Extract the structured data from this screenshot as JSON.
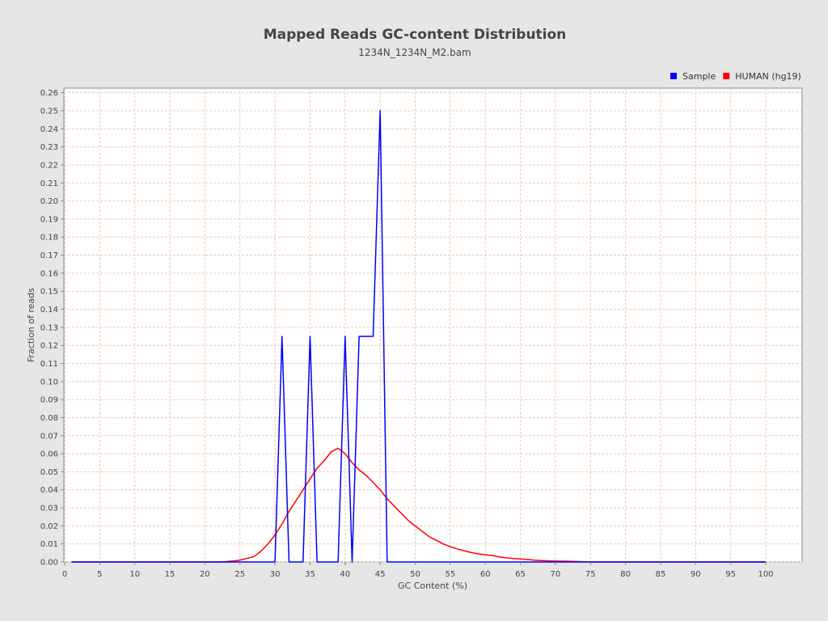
{
  "chart_data": {
    "type": "line",
    "title": "Mapped Reads GC-content Distribution",
    "subtitle": "1234N_1234N_M2.bam",
    "xlabel": "GC Content (%)",
    "ylabel": "Fraction of reads",
    "xlim": [
      0,
      105
    ],
    "ylim": [
      0,
      0.265
    ],
    "x_ticks": [
      0,
      5,
      10,
      15,
      20,
      25,
      30,
      35,
      40,
      45,
      50,
      55,
      60,
      65,
      70,
      75,
      80,
      85,
      90,
      95,
      100
    ],
    "y_ticks": [
      "0.00",
      "0.01",
      "0.02",
      "0.03",
      "0.04",
      "0.05",
      "0.06",
      "0.07",
      "0.08",
      "0.09",
      "0.10",
      "0.11",
      "0.12",
      "0.13",
      "0.14",
      "0.15",
      "0.16",
      "0.17",
      "0.18",
      "0.19",
      "0.20",
      "0.21",
      "0.22",
      "0.23",
      "0.24",
      "0.25",
      "0.26"
    ],
    "grid": true,
    "legend_position": "top-right",
    "series": [
      {
        "name": "Sample",
        "color": "#0000ff",
        "points": [
          [
            1,
            0
          ],
          [
            30,
            0
          ],
          [
            31,
            0.125
          ],
          [
            32,
            0
          ],
          [
            34,
            0
          ],
          [
            35,
            0.125
          ],
          [
            36,
            0
          ],
          [
            39,
            0
          ],
          [
            40,
            0.125
          ],
          [
            41,
            0
          ],
          [
            42,
            0.125
          ],
          [
            43,
            0.125
          ],
          [
            44,
            0.125
          ],
          [
            45,
            0.25
          ],
          [
            46,
            0
          ],
          [
            100,
            0
          ]
        ]
      },
      {
        "name": "HUMAN (hg19)",
        "color": "#ff0000",
        "points": [
          [
            1,
            0
          ],
          [
            20,
            0
          ],
          [
            22,
            0
          ],
          [
            23,
            0.0002
          ],
          [
            24,
            0.0005
          ],
          [
            25,
            0.001
          ],
          [
            26,
            0.002
          ],
          [
            27,
            0.003
          ],
          [
            28,
            0.006
          ],
          [
            29,
            0.01
          ],
          [
            30,
            0.015
          ],
          [
            31,
            0.021
          ],
          [
            32,
            0.028
          ],
          [
            33,
            0.034
          ],
          [
            34,
            0.04
          ],
          [
            35,
            0.046
          ],
          [
            36,
            0.052
          ],
          [
            37,
            0.056
          ],
          [
            38,
            0.061
          ],
          [
            39,
            0.063
          ],
          [
            40,
            0.06
          ],
          [
            41,
            0.055
          ],
          [
            42,
            0.051
          ],
          [
            43,
            0.048
          ],
          [
            44,
            0.044
          ],
          [
            45,
            0.04
          ],
          [
            46,
            0.035
          ],
          [
            47,
            0.031
          ],
          [
            48,
            0.027
          ],
          [
            49,
            0.023
          ],
          [
            50,
            0.02
          ],
          [
            51,
            0.017
          ],
          [
            52,
            0.014
          ],
          [
            53,
            0.012
          ],
          [
            54,
            0.01
          ],
          [
            55,
            0.0085
          ],
          [
            56,
            0.0072
          ],
          [
            57,
            0.0062
          ],
          [
            58,
            0.0052
          ],
          [
            59,
            0.0045
          ],
          [
            60,
            0.004
          ],
          [
            61,
            0.0036
          ],
          [
            62,
            0.0028
          ],
          [
            63,
            0.0023
          ],
          [
            64,
            0.0019
          ],
          [
            65,
            0.0017
          ],
          [
            66,
            0.0014
          ],
          [
            67,
            0.001
          ],
          [
            68,
            0.0008
          ],
          [
            69,
            0.0006
          ],
          [
            70,
            0.0005
          ],
          [
            72,
            0.0004
          ],
          [
            73,
            0.0003
          ],
          [
            74,
            0.0001
          ],
          [
            75,
            0
          ],
          [
            100,
            0
          ]
        ]
      }
    ]
  }
}
